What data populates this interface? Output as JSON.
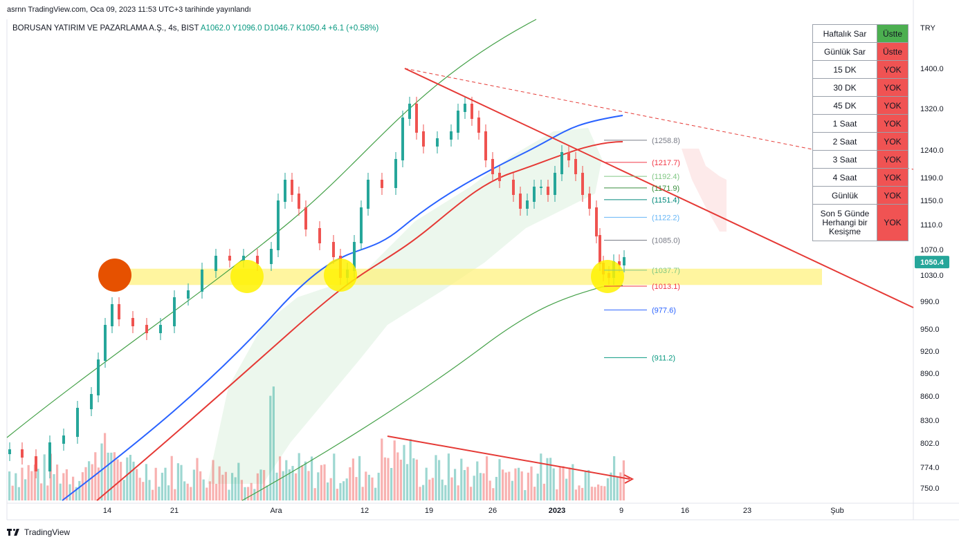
{
  "header": {
    "publisher": "asrnn TradingView.com, Oca 09, 2023 11:53 UTC+3 tarihinde yayınlandı",
    "symbol": "BORUSAN YATIRIM VE PAZARLAMA A.Ş., 4s, BIST",
    "ohlc": "A1062.0  Y1096.0  D1046.7  K1050.4  +6.1 (+0.58%)"
  },
  "footer": {
    "brand": "TradingView"
  },
  "colors": {
    "up": "#26a69a",
    "down": "#ef5350",
    "ma_blue": "#2962ff",
    "ma_red": "#e53935",
    "ma_green": "#43a047",
    "support_zone": "#fff176",
    "trendline": "#e53935",
    "price_badge": "#26a69a",
    "table_ok": "#4caf50",
    "table_bad": "#f05353"
  },
  "mtf_table": [
    {
      "label": "Haftalık Sar",
      "value": "Üstte",
      "state": "ok"
    },
    {
      "label": "Günlük Sar",
      "value": "Üstte",
      "state": "bad"
    },
    {
      "label": "15 DK",
      "value": "YOK",
      "state": "bad"
    },
    {
      "label": "30 DK",
      "value": "YOK",
      "state": "bad"
    },
    {
      "label": "45 DK",
      "value": "YOK",
      "state": "bad"
    },
    {
      "label": "1 Saat",
      "value": "YOK",
      "state": "bad"
    },
    {
      "label": "2 Saat",
      "value": "YOK",
      "state": "bad"
    },
    {
      "label": "3 Saat",
      "value": "YOK",
      "state": "bad"
    },
    {
      "label": "4 Saat",
      "value": "YOK",
      "state": "bad"
    },
    {
      "label": "Günlük",
      "value": "YOK",
      "state": "bad"
    },
    {
      "label": "Son 5 Günde Herhangi bir Kesişme",
      "value": "YOK",
      "state": "bad"
    }
  ],
  "chart_data": {
    "type": "candlestick",
    "currency": "TRY",
    "price_scale_ticks": [
      "1400.0",
      "1320.0",
      "1240.0",
      "1190.0",
      "1150.0",
      "1110.0",
      "1070.0",
      "1030.0",
      "990.0",
      "950.0",
      "920.0",
      "890.0",
      "860.0",
      "830.0",
      "802.0",
      "774.0",
      "750.0"
    ],
    "time_ticks": [
      "14",
      "21",
      "Ara",
      "12",
      "19",
      "26",
      "2023",
      "9",
      "16",
      "23",
      "Şub"
    ],
    "last_price": "1050.4",
    "levels": [
      {
        "label": "(1258.8)",
        "value": 1258.8,
        "color": "#787b86"
      },
      {
        "label": "(1217.7)",
        "value": 1217.7,
        "color": "#f23645"
      },
      {
        "label": "(1192.4)",
        "value": 1192.4,
        "color": "#81c784"
      },
      {
        "label": "(1171.9)",
        "value": 1171.9,
        "color": "#388e3c"
      },
      {
        "label": "(1151.4)",
        "value": 1151.4,
        "color": "#00897b"
      },
      {
        "label": "(1122.2)",
        "value": 1122.2,
        "color": "#64b5f6"
      },
      {
        "label": "(1085.0)",
        "value": 1085.0,
        "color": "#787b86"
      },
      {
        "label": "(1037.7)",
        "value": 1037.7,
        "color": "#81c784"
      },
      {
        "label": "(1013.1)",
        "value": 1013.1,
        "color": "#f23645"
      },
      {
        "label": "(977.6)",
        "value": 977.6,
        "color": "#2962ff"
      },
      {
        "label": "(911.2)",
        "value": 911.2,
        "color": "#089981"
      }
    ],
    "support_zone": [
      1015,
      1040
    ],
    "grid": false
  }
}
